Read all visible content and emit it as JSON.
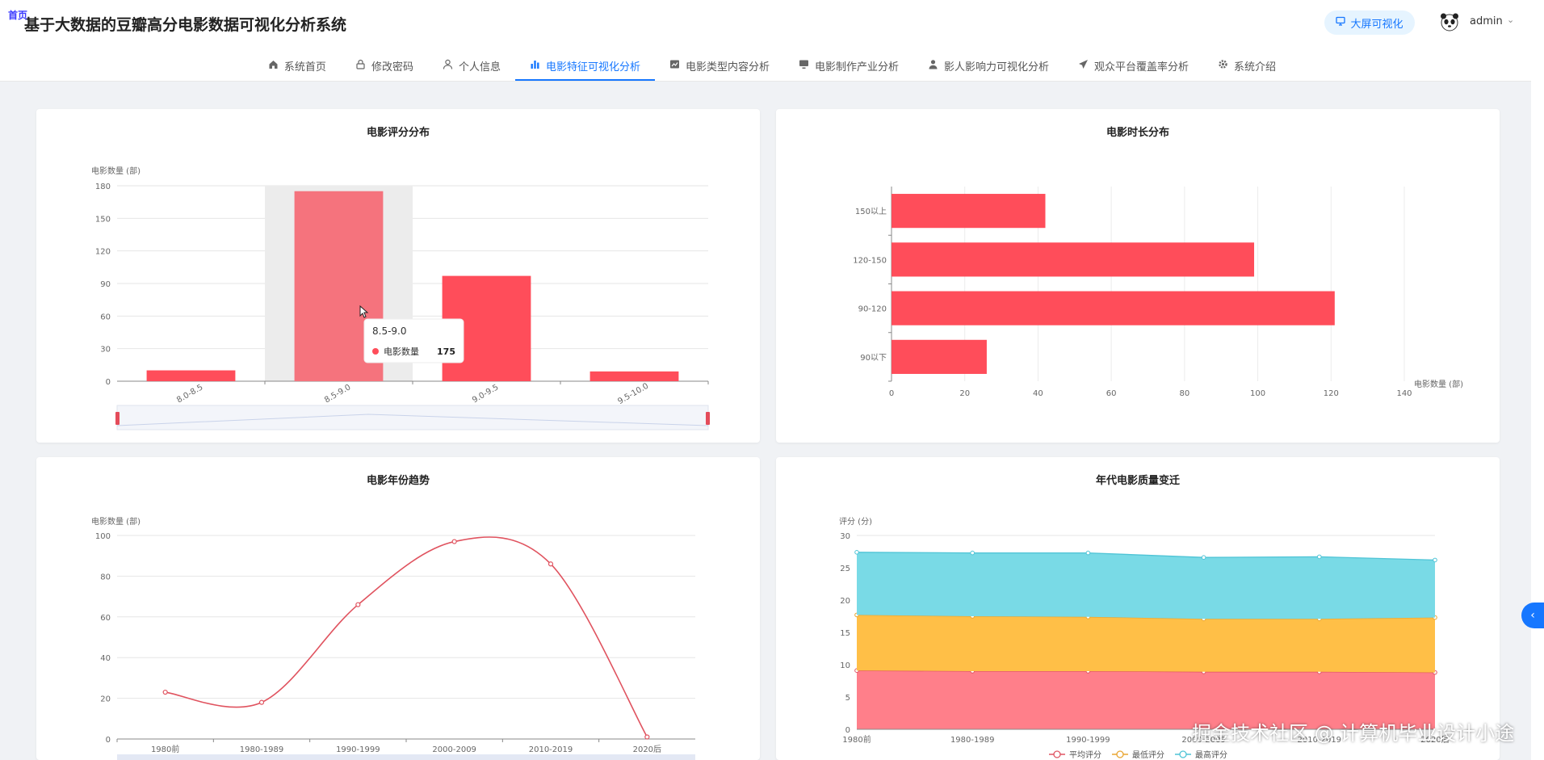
{
  "app": {
    "title": "基于大数据的豆瓣高分电影数据可视化分析系统",
    "corner_badge": "首页"
  },
  "header": {
    "bigscreen_label": "大屏可视化",
    "user_name": "admin"
  },
  "nav": {
    "items": [
      {
        "label": "系统首页",
        "icon": "home-icon"
      },
      {
        "label": "修改密码",
        "icon": "lock-icon"
      },
      {
        "label": "个人信息",
        "icon": "user-icon"
      },
      {
        "label": "电影特征可视化分析",
        "icon": "bar-chart-icon",
        "active": true
      },
      {
        "label": "电影类型内容分析",
        "icon": "line-chart-icon"
      },
      {
        "label": "电影制作产业分析",
        "icon": "monitor-icon"
      },
      {
        "label": "影人影响力可视化分析",
        "icon": "person-icon"
      },
      {
        "label": "观众平台覆盖率分析",
        "icon": "send-icon"
      },
      {
        "label": "系统介绍",
        "icon": "gear-icon"
      }
    ]
  },
  "colors": {
    "accent": "#1677ff",
    "bar": "#ff4d5a",
    "bar_highlight": "#f5737d",
    "line": "#e0535f",
    "area_avg": "#ff7f8a",
    "area_min": "#ffbf47",
    "area_max": "#79dae6"
  },
  "chart_data": [
    {
      "type": "bar",
      "title": "电影评分分布",
      "ylabel": "电影数量 (部)",
      "categories": [
        "8.0-8.5",
        "8.5-9.0",
        "9.0-9.5",
        "9.5-10.0"
      ],
      "values": [
        10,
        175,
        97,
        9
      ],
      "ylim": [
        0,
        180
      ],
      "yticks": [
        0,
        30,
        60,
        90,
        120,
        150,
        180
      ],
      "grid": true,
      "highlight_index": 1,
      "tooltip": {
        "title": "8.5-9.0",
        "series": "电影数量",
        "value": "175"
      }
    },
    {
      "type": "bar",
      "orientation": "horizontal",
      "title": "电影时长分布",
      "xlabel": "电影数量 (部)",
      "categories": [
        "90以下",
        "90-120",
        "120-150",
        "150以上"
      ],
      "values": [
        26,
        121,
        99,
        42
      ],
      "xlim": [
        0,
        140
      ],
      "xticks": [
        0,
        20,
        40,
        60,
        80,
        100,
        120,
        140
      ],
      "grid": true
    },
    {
      "type": "line",
      "title": "电影年份趋势",
      "ylabel": "电影数量 (部)",
      "categories": [
        "1980前",
        "1980-1989",
        "1990-1999",
        "2000-2009",
        "2010-2019",
        "2020后"
      ],
      "values": [
        23,
        18,
        66,
        97,
        86,
        1
      ],
      "ylim": [
        0,
        100
      ],
      "yticks": [
        0,
        20,
        40,
        60,
        80,
        100
      ],
      "grid": true
    },
    {
      "type": "area",
      "stacked": true,
      "title": "年代电影质量变迁",
      "ylabel": "评分 (分)",
      "categories": [
        "1980前",
        "1980-1989",
        "1990-1999",
        "2000-2009",
        "2010-2019",
        "2020后"
      ],
      "ylim": [
        0,
        30
      ],
      "yticks": [
        0,
        5,
        10,
        15,
        20,
        25,
        30
      ],
      "series": [
        {
          "name": "平均评分",
          "values": [
            9.1,
            9.0,
            9.0,
            8.9,
            8.9,
            8.8
          ]
        },
        {
          "name": "最低评分",
          "values": [
            8.6,
            8.5,
            8.4,
            8.2,
            8.2,
            8.5
          ]
        },
        {
          "name": "最高评分",
          "values": [
            9.7,
            9.8,
            9.9,
            9.5,
            9.6,
            8.9
          ]
        }
      ],
      "legend": "bottom",
      "grid": true
    }
  ],
  "watermark": "掘金技术社区 @ 计算机毕业设计小途"
}
